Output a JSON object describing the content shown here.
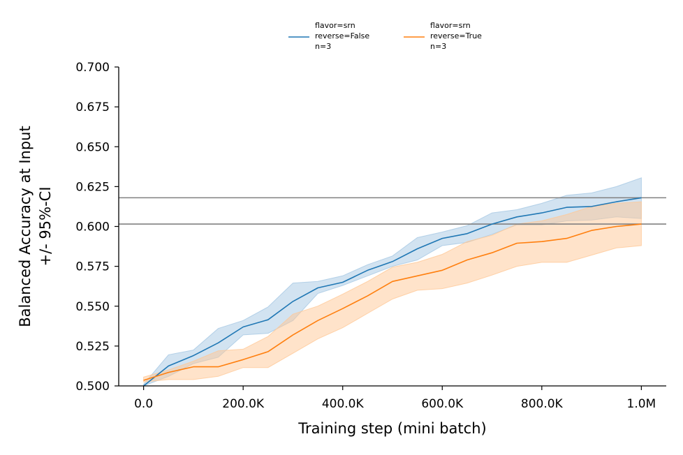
{
  "chart_data": {
    "type": "line",
    "xlabel": "Training step (mini batch)",
    "ylabel_lines": [
      "Balanced Accuracy at Input",
      "+/- 95%-CI"
    ],
    "xlim": [
      -50000,
      1050000
    ],
    "ylim": [
      0.5,
      0.7
    ],
    "xticks": [
      0,
      200000,
      400000,
      600000,
      800000,
      1000000
    ],
    "xtick_labels": [
      "0.0",
      "200.0K",
      "400.0K",
      "600.0K",
      "800.0K",
      "1.0M"
    ],
    "yticks": [
      0.5,
      0.525,
      0.55,
      0.575,
      0.6,
      0.625,
      0.65,
      0.675,
      0.7
    ],
    "ytick_labels": [
      "0.500",
      "0.525",
      "0.550",
      "0.575",
      "0.600",
      "0.625",
      "0.650",
      "0.675",
      "0.700"
    ],
    "legend_position": "top-center",
    "hlines": [
      0.618,
      0.6015
    ],
    "hline_color": "#808080",
    "x": [
      0,
      50000,
      100000,
      150000,
      200000,
      250000,
      300000,
      350000,
      400000,
      450000,
      500000,
      550000,
      600000,
      650000,
      700000,
      750000,
      800000,
      850000,
      900000,
      950000,
      1000000
    ],
    "series": [
      {
        "name_lines": [
          "flavor=srn",
          "reverse=False",
          "n=3"
        ],
        "color": "#1f77b4",
        "values": [
          0.5,
          0.5125,
          0.519,
          0.527,
          0.537,
          0.5415,
          0.553,
          0.5615,
          0.565,
          0.5725,
          0.578,
          0.586,
          0.5925,
          0.5955,
          0.6015,
          0.606,
          0.6085,
          0.612,
          0.6125,
          0.6155,
          0.618
        ],
        "lower": [
          0.5,
          0.506,
          0.514,
          0.518,
          0.532,
          0.533,
          0.541,
          0.558,
          0.563,
          0.569,
          0.575,
          0.579,
          0.588,
          0.59,
          0.595,
          0.601,
          0.601,
          0.6035,
          0.604,
          0.606,
          0.605
        ],
        "upper": [
          0.501,
          0.5195,
          0.5225,
          0.536,
          0.541,
          0.5495,
          0.5645,
          0.5655,
          0.569,
          0.576,
          0.5815,
          0.593,
          0.5965,
          0.6005,
          0.6085,
          0.6105,
          0.6145,
          0.6195,
          0.621,
          0.625,
          0.6305
        ]
      },
      {
        "name_lines": [
          "flavor=srn",
          "reverse=True",
          "n=3"
        ],
        "color": "#ff7f0e",
        "values": [
          0.5035,
          0.5085,
          0.512,
          0.512,
          0.5165,
          0.5215,
          0.532,
          0.541,
          0.5485,
          0.5565,
          0.5655,
          0.569,
          0.5725,
          0.579,
          0.5835,
          0.5895,
          0.5905,
          0.5925,
          0.5975,
          0.6,
          0.6015
        ]
      }
    ]
  }
}
